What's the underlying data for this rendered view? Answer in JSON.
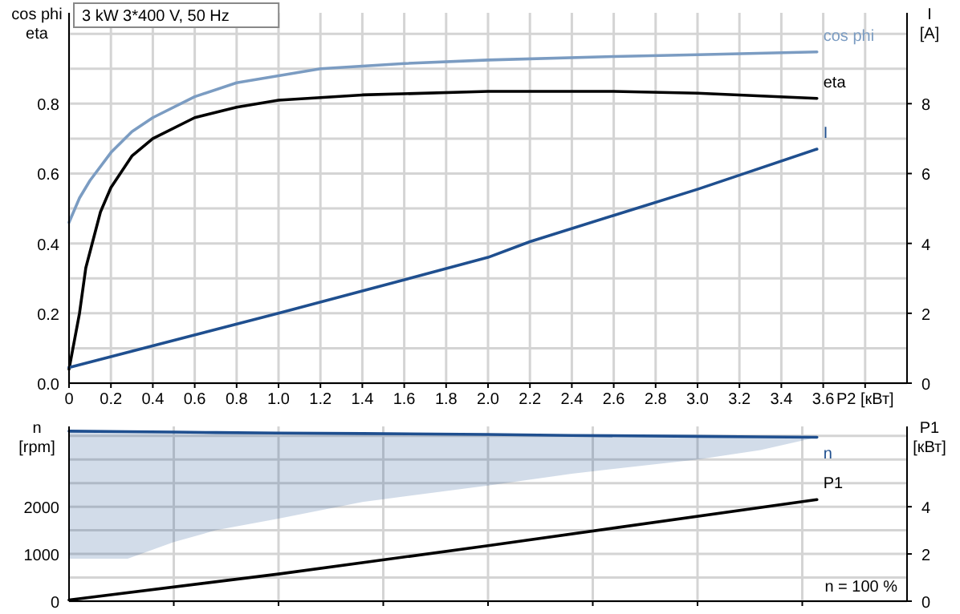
{
  "chart_data": [
    {
      "type": "line",
      "title": "3 kW   3*400 V, 50 Hz",
      "xlabel": "P2 [кВт]",
      "ylabel": "cos phi\neta",
      "y2label": "I\n[A]",
      "xlim": [
        0,
        4
      ],
      "xticks": [
        0,
        0.2,
        0.4,
        0.6,
        0.8,
        {
          "value": 1,
          "label": "1.0"
        },
        1.2,
        1.4,
        1.6,
        1.8,
        {
          "value": 2,
          "label": "2.0"
        },
        2.2,
        2.4,
        2.6,
        2.8,
        {
          "value": 3,
          "label": "3.0"
        },
        3.2,
        3.4,
        3.6,
        {
          "value": 3.8,
          "label": null
        }
      ],
      "ylim": [
        0,
        1.06
      ],
      "yticks": [
        {
          "value": 0,
          "label": "0.0"
        },
        {
          "value": 0.1,
          "label": null
        },
        0.2,
        {
          "value": 0.3,
          "label": null
        },
        0.4,
        {
          "value": 0.5,
          "label": null
        },
        0.6,
        {
          "value": 0.7,
          "label": null
        },
        0.8,
        {
          "value": 0.9,
          "label": null
        },
        {
          "value": 1,
          "label": null
        }
      ],
      "y2lim": [
        0,
        10.6
      ],
      "y2ticks": [
        0,
        2,
        4,
        6,
        8
      ],
      "grid": true,
      "series": [
        {
          "name": "cos phi",
          "color": "#7b9cc2",
          "x": [
            0,
            0.05,
            0.1,
            0.2,
            0.3,
            0.4,
            0.6,
            0.8,
            1,
            1.2,
            1.6,
            2,
            2.6,
            3,
            3.57
          ],
          "values": [
            0.46,
            0.53,
            0.58,
            0.66,
            0.72,
            0.76,
            0.82,
            0.86,
            0.88,
            0.9,
            0.915,
            0.925,
            0.935,
            0.94,
            0.948
          ]
        },
        {
          "name": "eta",
          "color": "#000000",
          "x": [
            0,
            0.05,
            0.08,
            0.15,
            0.2,
            0.3,
            0.4,
            0.6,
            0.8,
            1,
            1.4,
            2,
            2.6,
            3,
            3.57
          ],
          "values": [
            0.04,
            0.2,
            0.33,
            0.49,
            0.56,
            0.65,
            0.7,
            0.76,
            0.79,
            0.81,
            0.825,
            0.835,
            0.835,
            0.83,
            0.815
          ]
        },
        {
          "name": "I",
          "color": "#1f4f8f",
          "axis": "y2",
          "x": [
            0,
            1,
            2,
            2.2,
            2.6,
            3,
            3.57
          ],
          "values": [
            0.45,
            2,
            3.6,
            4.05,
            4.8,
            5.55,
            6.7
          ]
        }
      ]
    },
    {
      "type": "line",
      "ylabel": "n\n[rpm]",
      "y2label": "P1\n[кВт]",
      "xlim": [
        0,
        4
      ],
      "xticks": [
        {
          "value": 0.5,
          "label": null
        },
        {
          "value": 1,
          "label": null
        },
        {
          "value": 1.5,
          "label": null
        },
        {
          "value": 2,
          "label": null
        },
        {
          "value": 2.5,
          "label": null
        },
        {
          "value": 3,
          "label": null
        },
        {
          "value": 3.5,
          "label": null
        }
      ],
      "ylim": [
        0,
        3700
      ],
      "yticks": [
        0,
        {
          "value": 500,
          "label": null
        },
        1000,
        {
          "value": 1500,
          "label": null
        },
        2000,
        {
          "value": 2500,
          "label": null
        },
        {
          "value": 3000,
          "label": null
        },
        {
          "value": 3500,
          "label": null
        }
      ],
      "y2lim": [
        0,
        7.4
      ],
      "y2ticks": [
        0,
        2,
        4
      ],
      "grid": true,
      "tick_labels": "y",
      "annotations": [
        "n = 100 %"
      ],
      "series": [
        {
          "name": "n",
          "color": "#1f4f8f",
          "x": [
            0,
            0.28,
            0.5,
            0.7,
            1,
            1.4,
            2,
            2.4,
            3,
            3.3,
            3.57
          ],
          "values": [
            3600,
            3590,
            3580,
            3570,
            3560,
            3550,
            3530,
            3510,
            3490,
            3480,
            3470
          ],
          "lower": [
            900,
            900,
            1250,
            1500,
            1750,
            2100,
            2450,
            2700,
            3000,
            3200,
            3470
          ],
          "upper": [
            3600,
            3590,
            3580,
            3570,
            3560,
            3550,
            3530,
            3510,
            3490,
            3480,
            3470
          ]
        },
        {
          "name": "P1",
          "color": "#000000",
          "axis": "y2",
          "x": [
            0,
            1,
            2,
            3.57
          ],
          "values": [
            0.05,
            1.15,
            2.35,
            4.3
          ]
        }
      ]
    }
  ]
}
